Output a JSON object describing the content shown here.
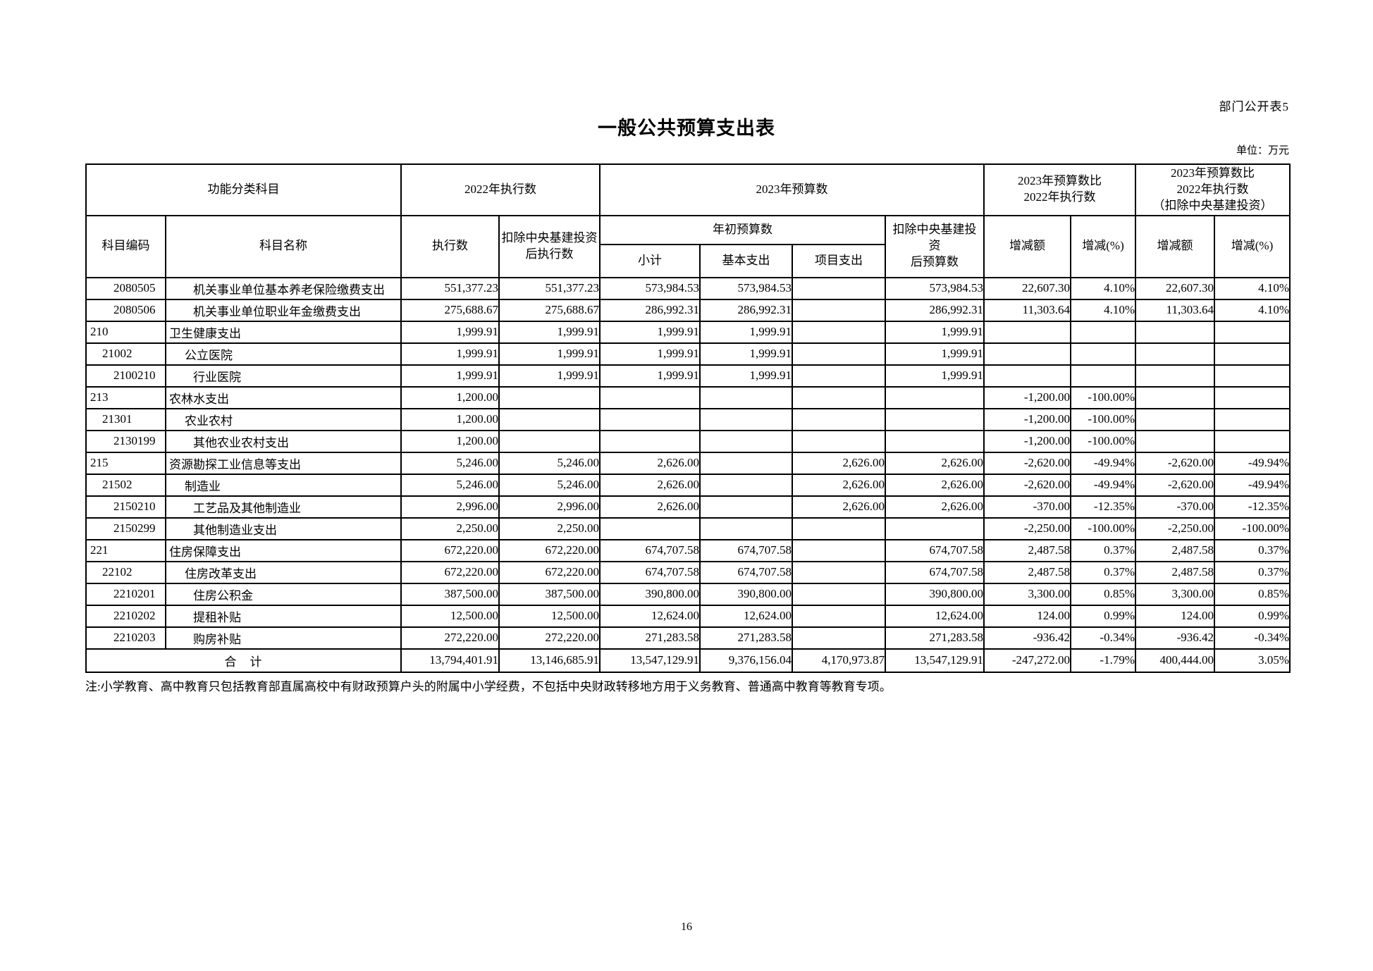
{
  "meta": {
    "doc_label": "部门公开表5",
    "title": "一般公共预算支出表",
    "unit_note": "单位：万元",
    "footnote": "注:小学教育、高中教育只包括教育部直属高校中有财政预算户头的附属中小学经费，不包括中央财政转移地方用于义务教育、普通高中教育等教育专项。",
    "page_number": "16"
  },
  "table": {
    "header": {
      "group_function": "功能分类科目",
      "group_exec_2022": "2022年执行数",
      "group_budget_2023": "2023年预算数",
      "group_diff": "2023年预算数比\n2022年执行数",
      "group_diff_net": "2023年预算数比\n2022年执行数\n（扣除中央基建投资）",
      "col_code": "科目编码",
      "col_name": "科目名称",
      "col_exec": "执行数",
      "col_exec_net": "扣除中央基建投资\n后执行数",
      "group_initial_budget": "年初预算数",
      "col_subtotal": "小计",
      "col_basic": "基本支出",
      "col_project": "项目支出",
      "col_budget_net": "扣除中央基建投资\n后预算数",
      "col_diff_amount": "增减额",
      "col_diff_pct": "增减(%)",
      "col_diff_amount_net": "增减额",
      "col_diff_pct_net": "增减(%)"
    },
    "rows": [
      {
        "code": "2080505",
        "name": "机关事业单位基本养老保险缴费支出",
        "indent": 2,
        "values": [
          "551,377.23",
          "551,377.23",
          "573,984.53",
          "573,984.53",
          "",
          "573,984.53",
          "22,607.30",
          "4.10%",
          "22,607.30",
          "4.10%"
        ]
      },
      {
        "code": "2080506",
        "name": "机关事业单位职业年金缴费支出",
        "indent": 2,
        "values": [
          "275,688.67",
          "275,688.67",
          "286,992.31",
          "286,992.31",
          "",
          "286,992.31",
          "11,303.64",
          "4.10%",
          "11,303.64",
          "4.10%"
        ]
      },
      {
        "code": "210",
        "name": "卫生健康支出",
        "indent": 0,
        "values": [
          "1,999.91",
          "1,999.91",
          "1,999.91",
          "1,999.91",
          "",
          "1,999.91",
          "",
          "",
          "",
          ""
        ]
      },
      {
        "code": "21002",
        "name": "公立医院",
        "indent": 1,
        "values": [
          "1,999.91",
          "1,999.91",
          "1,999.91",
          "1,999.91",
          "",
          "1,999.91",
          "",
          "",
          "",
          ""
        ]
      },
      {
        "code": "2100210",
        "name": "行业医院",
        "indent": 2,
        "values": [
          "1,999.91",
          "1,999.91",
          "1,999.91",
          "1,999.91",
          "",
          "1,999.91",
          "",
          "",
          "",
          ""
        ]
      },
      {
        "code": "213",
        "name": "农林水支出",
        "indent": 0,
        "values": [
          "1,200.00",
          "",
          "",
          "",
          "",
          "",
          "-1,200.00",
          "-100.00%",
          "",
          ""
        ]
      },
      {
        "code": "21301",
        "name": "农业农村",
        "indent": 1,
        "values": [
          "1,200.00",
          "",
          "",
          "",
          "",
          "",
          "-1,200.00",
          "-100.00%",
          "",
          ""
        ]
      },
      {
        "code": "2130199",
        "name": "其他农业农村支出",
        "indent": 2,
        "values": [
          "1,200.00",
          "",
          "",
          "",
          "",
          "",
          "-1,200.00",
          "-100.00%",
          "",
          ""
        ]
      },
      {
        "code": "215",
        "name": "资源勘探工业信息等支出",
        "indent": 0,
        "values": [
          "5,246.00",
          "5,246.00",
          "2,626.00",
          "",
          "2,626.00",
          "2,626.00",
          "-2,620.00",
          "-49.94%",
          "-2,620.00",
          "-49.94%"
        ]
      },
      {
        "code": "21502",
        "name": "制造业",
        "indent": 1,
        "values": [
          "5,246.00",
          "5,246.00",
          "2,626.00",
          "",
          "2,626.00",
          "2,626.00",
          "-2,620.00",
          "-49.94%",
          "-2,620.00",
          "-49.94%"
        ]
      },
      {
        "code": "2150210",
        "name": "工艺品及其他制造业",
        "indent": 2,
        "values": [
          "2,996.00",
          "2,996.00",
          "2,626.00",
          "",
          "2,626.00",
          "2,626.00",
          "-370.00",
          "-12.35%",
          "-370.00",
          "-12.35%"
        ]
      },
      {
        "code": "2150299",
        "name": "其他制造业支出",
        "indent": 2,
        "values": [
          "2,250.00",
          "2,250.00",
          "",
          "",
          "",
          "",
          "-2,250.00",
          "-100.00%",
          "-2,250.00",
          "-100.00%"
        ]
      },
      {
        "code": "221",
        "name": "住房保障支出",
        "indent": 0,
        "values": [
          "672,220.00",
          "672,220.00",
          "674,707.58",
          "674,707.58",
          "",
          "674,707.58",
          "2,487.58",
          "0.37%",
          "2,487.58",
          "0.37%"
        ]
      },
      {
        "code": "22102",
        "name": "住房改革支出",
        "indent": 1,
        "values": [
          "672,220.00",
          "672,220.00",
          "674,707.58",
          "674,707.58",
          "",
          "674,707.58",
          "2,487.58",
          "0.37%",
          "2,487.58",
          "0.37%"
        ]
      },
      {
        "code": "2210201",
        "name": "住房公积金",
        "indent": 2,
        "values": [
          "387,500.00",
          "387,500.00",
          "390,800.00",
          "390,800.00",
          "",
          "390,800.00",
          "3,300.00",
          "0.85%",
          "3,300.00",
          "0.85%"
        ]
      },
      {
        "code": "2210202",
        "name": "提租补贴",
        "indent": 2,
        "values": [
          "12,500.00",
          "12,500.00",
          "12,624.00",
          "12,624.00",
          "",
          "12,624.00",
          "124.00",
          "0.99%",
          "124.00",
          "0.99%"
        ]
      },
      {
        "code": "2210203",
        "name": "购房补贴",
        "indent": 2,
        "values": [
          "272,220.00",
          "272,220.00",
          "271,283.58",
          "271,283.58",
          "",
          "271,283.58",
          "-936.42",
          "-0.34%",
          "-936.42",
          "-0.34%"
        ]
      }
    ],
    "total_row": {
      "label": "合　计",
      "values": [
        "13,794,401.91",
        "13,146,685.91",
        "13,547,129.91",
        "9,376,156.04",
        "4,170,973.87",
        "13,547,129.91",
        "-247,272.00",
        "-1.79%",
        "400,444.00",
        "3.05%"
      ]
    }
  }
}
